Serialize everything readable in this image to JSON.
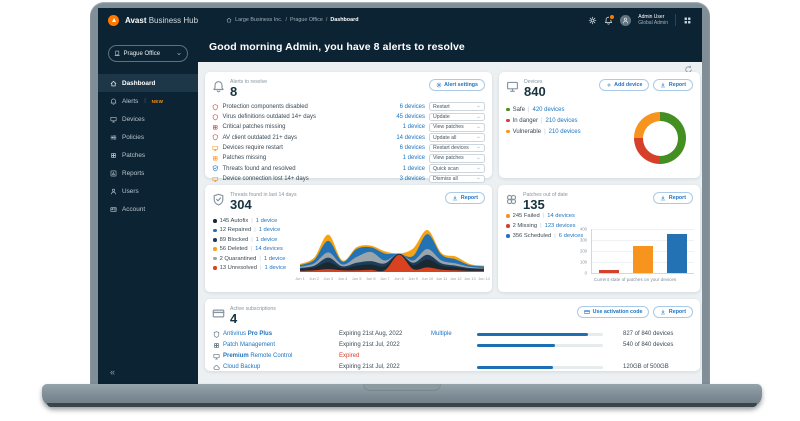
{
  "topbar": {
    "brand": {
      "bold": "Avast",
      "rest": " Business Hub"
    },
    "breadcrumb": {
      "items": [
        "Large Business Inc.",
        "Prague Office",
        "Dashboard"
      ]
    },
    "user": {
      "name": "Admin User",
      "role": "Global Admin"
    }
  },
  "sidebar": {
    "org_selector": "Prague Office",
    "items": [
      {
        "label": "Dashboard"
      },
      {
        "label": "Alerts",
        "badge": "NEW"
      },
      {
        "label": "Devices"
      },
      {
        "label": "Policies"
      },
      {
        "label": "Patches"
      },
      {
        "label": "Reports"
      },
      {
        "label": "Users"
      },
      {
        "label": "Account"
      }
    ],
    "collapse": "«"
  },
  "header": {
    "greeting": "Good morning Admin, you have 8 alerts to resolve"
  },
  "alerts_card": {
    "title": "Alerts to resolve",
    "count": "8",
    "settings_button": "Alert settings",
    "rows": [
      {
        "label": "Protection components disabled",
        "devices": "6 devices",
        "action": "Restart",
        "color": "#d6402a"
      },
      {
        "label": "Virus definitions outdated 14+ days",
        "devices": "45 devices",
        "action": "Update",
        "color": "#d6402a"
      },
      {
        "label": "Critical patches missing",
        "devices": "1 device",
        "action": "View patches",
        "color": "#d6402a"
      },
      {
        "label": "AV client outdated 21+ days",
        "devices": "14 devices",
        "action": "Update all",
        "color": "#d6402a"
      },
      {
        "label": "Devices require restart",
        "devices": "6 devices",
        "action": "Restart devices",
        "color": "#f7941d"
      },
      {
        "label": "Patches missing",
        "devices": "1 device",
        "action": "View patches",
        "color": "#f7941d"
      },
      {
        "label": "Threats found and resolved",
        "devices": "1 device",
        "action": "Quick scan",
        "color": "#1d74c0"
      },
      {
        "label": "Device connection lost 14+ days",
        "devices": "3 devices",
        "action": "Dismiss all",
        "color": "#f7941d"
      }
    ]
  },
  "devices_card": {
    "title": "Devices",
    "count": "840",
    "add_button": "Add device",
    "report_button": "Report",
    "legend": [
      {
        "label": "Safe",
        "value": "420 devices",
        "color": "#448f22"
      },
      {
        "label": "In danger",
        "value": "210 devices",
        "color": "#d6402a"
      },
      {
        "label": "Vulnerable",
        "value": "210 devices",
        "color": "#f7941d"
      }
    ]
  },
  "threats_card": {
    "title": "Threats found in last 14 days",
    "count": "304",
    "report_button": "Report",
    "legend": [
      {
        "label": "145 Autofix",
        "value": "1 device",
        "color": "#1b2830"
      },
      {
        "label": "12 Repaired",
        "value": "1 device",
        "color": "#2272b4"
      },
      {
        "label": "89 Blocked",
        "value": "1 device",
        "color": "#1d3d5c"
      },
      {
        "label": "56 Deleted",
        "value": "14 devices",
        "color": "#f7a211"
      },
      {
        "label": "2 Quarantined",
        "value": "1 device",
        "color": "#9aa4ab"
      },
      {
        "label": "13 Unresolved",
        "value": "1 device",
        "color": "#d8421f"
      }
    ]
  },
  "patches_card": {
    "title": "Patches out of date",
    "count": "135",
    "report_button": "Report",
    "legend": [
      {
        "label": "245 Failed",
        "value": "14 devices",
        "color": "#f7941d"
      },
      {
        "label": "2 Missing",
        "value": "123 devices",
        "color": "#d6402a"
      },
      {
        "label": "356 Scheduled",
        "value": "6 devices",
        "color": "#1d74c0"
      }
    ],
    "caption": "Current state of patches on your devices"
  },
  "subscriptions_card": {
    "title": "Active subscriptions",
    "count": "4",
    "activation_button": "Use activation code",
    "report_button": "Report",
    "rows": [
      {
        "name_pre": "Antivirus ",
        "name_bold": "Pro Plus",
        "name_post": "",
        "expiry": "Expiring 21st Aug, 2022",
        "extra": "Multiple",
        "progress": 88,
        "usage": "827 of 840 devices"
      },
      {
        "name_pre": "Patch Management",
        "name_bold": "",
        "name_post": "",
        "expiry": "Expiring 21st Jul, 2022",
        "progress": 62,
        "usage": "540 of 840 devices"
      },
      {
        "name_pre": "",
        "name_bold": "Premium ",
        "name_post": "Remote Control",
        "expiry": "Expired",
        "expired": true
      },
      {
        "name_pre": "Cloud Backup",
        "name_bold": "",
        "name_post": "",
        "expiry": "Expiring 21st Jul, 2022",
        "progress": 60,
        "usage": "120GB of 500GB"
      }
    ]
  },
  "chart_data": [
    {
      "id": "devices-donut",
      "type": "pie",
      "title": "Devices",
      "labels": [
        "Safe",
        "In danger",
        "Vulnerable"
      ],
      "values": [
        420,
        210,
        210
      ],
      "colors": [
        "#448f22",
        "#d6402a",
        "#f7941d"
      ]
    },
    {
      "id": "threats-area",
      "type": "area",
      "title": "Threats found in last 14 days",
      "x": [
        "Jun 1",
        "Jun 2",
        "Jun 3",
        "Jun 4",
        "Jun 5",
        "Jun 6",
        "Jun 7",
        "Jun 8",
        "Jun 9",
        "Jun 10",
        "Jun 11",
        "Jun 12",
        "Jun 13",
        "Jun 14"
      ],
      "ylim": [
        0,
        80
      ],
      "legend_position": "left",
      "series": [
        {
          "name": "Unresolved",
          "color": "#d8421f",
          "values": [
            2,
            3,
            5,
            3,
            3,
            4,
            3,
            30,
            5,
            8,
            4,
            3,
            2,
            2
          ]
        },
        {
          "name": "Autofix",
          "color": "#1b2830",
          "values": [
            3,
            5,
            12,
            4,
            8,
            9,
            7,
            1,
            7,
            14,
            7,
            5,
            3,
            2
          ]
        },
        {
          "name": "Blocked",
          "color": "#1d3d5c",
          "values": [
            2,
            3,
            8,
            3,
            5,
            6,
            5,
            1,
            4,
            8,
            4,
            3,
            2,
            2
          ]
        },
        {
          "name": "Quarantined",
          "color": "#9aa4ab",
          "values": [
            2,
            4,
            9,
            3,
            10,
            16,
            5,
            0,
            4,
            10,
            5,
            4,
            2,
            1
          ]
        },
        {
          "name": "Repaired",
          "color": "#2272b4",
          "values": [
            3,
            6,
            20,
            5,
            14,
            8,
            12,
            0,
            8,
            26,
            10,
            7,
            3,
            3
          ]
        },
        {
          "name": "Deleted",
          "color": "#f7a211",
          "values": [
            2,
            4,
            11,
            2,
            3,
            3,
            4,
            0,
            13,
            7,
            3,
            5,
            2,
            1
          ]
        }
      ]
    },
    {
      "id": "patches-bar",
      "type": "bar",
      "title": "Patches out of date",
      "categories": [
        "Missing",
        "Failed",
        "Scheduled"
      ],
      "values": [
        2,
        245,
        356
      ],
      "colors": [
        "#d6402a",
        "#f7941d",
        "#2272b4"
      ],
      "ylim": [
        0,
        400
      ],
      "yticks": [
        0,
        100,
        200,
        300,
        400
      ],
      "xlabel": "Current state of patches on your devices"
    }
  ],
  "colors": {
    "navy": "#0c2333",
    "link_blue": "#1d74c0",
    "orange": "#f7941d",
    "red": "#d6402a",
    "green": "#448f22",
    "brand_orange": "#ff7800"
  }
}
